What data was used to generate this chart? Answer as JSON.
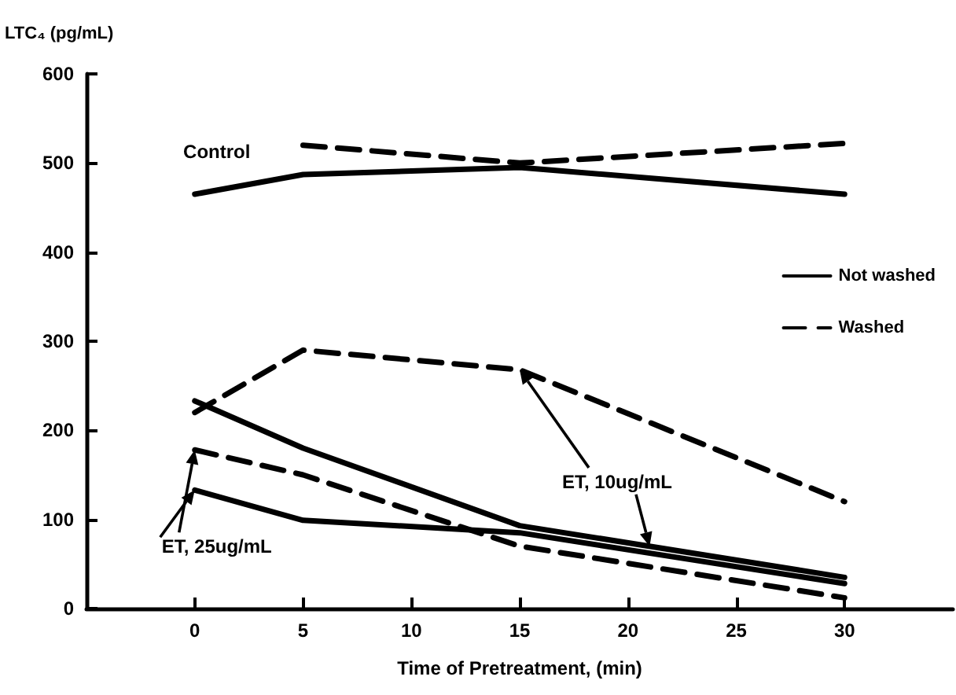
{
  "chart_data": {
    "type": "line",
    "xlabel": "Time of Pretreatment, (min)",
    "ylabel": "LTC₄ (pg/mL)",
    "xlim": [
      -5,
      35
    ],
    "xticks": [
      0,
      5,
      10,
      15,
      20,
      25,
      30
    ],
    "ylim": [
      0,
      600
    ],
    "yticks": [
      0,
      100,
      200,
      300,
      400,
      500,
      600
    ],
    "grid": false,
    "legend": "right",
    "marker": "none",
    "series": [
      {
        "name": "Not washed",
        "color": "#000000",
        "line_style": "solid",
        "x": [
          0,
          5,
          15,
          30
        ],
        "values": [
          465,
          487,
          495,
          465
        ]
      },
      {
        "name": "Washed",
        "color": "#000000",
        "line_style": "dashed",
        "x": [
          5,
          15,
          30
        ],
        "values": [
          520,
          500,
          522
        ]
      },
      {
        "color": "#000000",
        "line_style": "dashed",
        "x": [
          0,
          5,
          15,
          30
        ],
        "values": [
          220,
          290,
          268,
          120
        ]
      },
      {
        "color": "#000000",
        "line_style": "solid",
        "x": [
          0,
          5,
          15,
          30
        ],
        "values": [
          233,
          180,
          93,
          35
        ]
      },
      {
        "color": "#000000",
        "line_style": "dashed",
        "x": [
          0,
          5,
          15,
          30
        ],
        "values": [
          178,
          150,
          70,
          12
        ]
      },
      {
        "color": "#000000",
        "line_style": "solid",
        "x": [
          0,
          5,
          15,
          30
        ],
        "values": [
          133,
          99,
          85,
          28
        ]
      }
    ],
    "annotations": [
      "Control",
      {
        "text": "ET, 10ug/mL",
        "x": 15,
        "y": 268
      },
      {
        "text": "ET, 25ug/mL",
        "x": 0,
        "y": 178
      }
    ]
  }
}
